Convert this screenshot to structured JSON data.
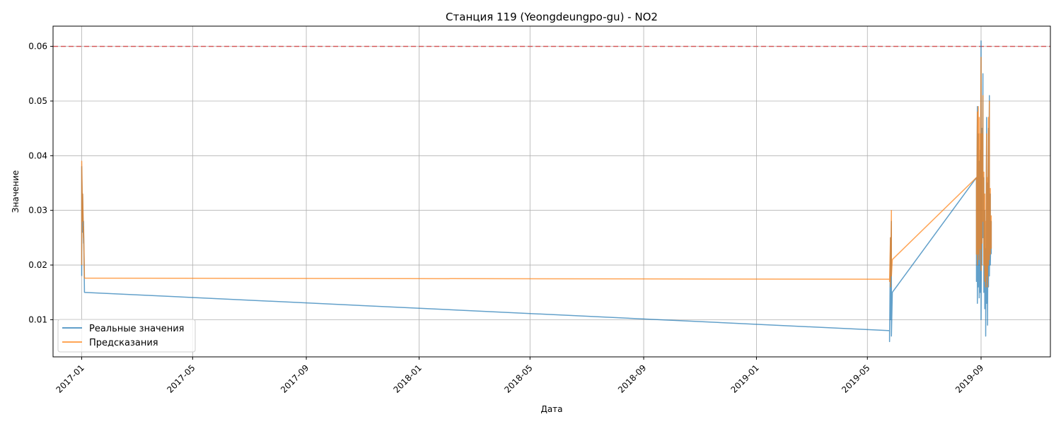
{
  "chart_data": {
    "type": "line",
    "title": "Станция 119 (Yeongdeungpo-gu) - NO2",
    "xlabel": "Дата",
    "ylabel": "Значение",
    "x_type": "date",
    "xlim": [
      "2016-12-01",
      "2019-11-15"
    ],
    "ylim": [
      0.0032,
      0.0637
    ],
    "x_ticks": [
      "2017-01-01",
      "2017-05-01",
      "2017-09-01",
      "2018-01-01",
      "2018-05-01",
      "2018-09-01",
      "2019-01-01",
      "2019-05-01",
      "2019-09-01"
    ],
    "x_tick_labels": [
      "2017-01",
      "2017-05",
      "2017-09",
      "2018-01",
      "2018-05",
      "2018-09",
      "2019-01",
      "2019-05",
      "2019-09"
    ],
    "y_ticks": [
      0.01,
      0.02,
      0.03,
      0.04,
      0.05,
      0.06
    ],
    "y_tick_labels": [
      "0.01",
      "0.02",
      "0.03",
      "0.04",
      "0.05",
      "0.06"
    ],
    "grid": true,
    "legend_position": "lower-left",
    "threshold": {
      "value": 0.06,
      "color": "#d62728",
      "style": "dashed"
    },
    "series": [
      {
        "name": "Реальные значения",
        "color": "#1f77b4",
        "x": [
          "2017-01-01",
          "2017-01-01",
          "2017-01-02",
          "2017-01-02",
          "2017-01-03",
          "2017-01-03",
          "2017-01-04",
          "2019-05-25",
          "2019-05-25",
          "2019-05-26",
          "2019-05-26",
          "2019-05-27",
          "2019-05-27",
          "2019-05-28",
          "2019-08-27",
          "2019-08-27",
          "2019-08-28",
          "2019-08-28",
          "2019-08-29",
          "2019-08-29",
          "2019-08-30",
          "2019-08-30",
          "2019-08-31",
          "2019-08-31",
          "2019-09-01",
          "2019-09-01",
          "2019-09-02",
          "2019-09-02",
          "2019-09-03",
          "2019-09-03",
          "2019-09-04",
          "2019-09-04",
          "2019-09-05",
          "2019-09-05",
          "2019-09-06",
          "2019-09-06",
          "2019-09-07",
          "2019-09-07",
          "2019-09-08",
          "2019-09-08",
          "2019-09-09",
          "2019-09-09",
          "2019-09-10",
          "2019-09-10",
          "2019-09-11",
          "2019-09-11",
          "2019-09-12",
          "2019-09-12"
        ],
        "y": [
          0.018,
          0.038,
          0.026,
          0.033,
          0.024,
          0.028,
          0.015,
          0.008,
          0.006,
          0.025,
          0.01,
          0.028,
          0.007,
          0.015,
          0.036,
          0.017,
          0.049,
          0.013,
          0.044,
          0.016,
          0.039,
          0.014,
          0.041,
          0.015,
          0.061,
          0.01,
          0.045,
          0.02,
          0.055,
          0.025,
          0.036,
          0.015,
          0.03,
          0.012,
          0.023,
          0.007,
          0.047,
          0.013,
          0.035,
          0.009,
          0.045,
          0.016,
          0.051,
          0.018,
          0.033,
          0.02,
          0.028,
          0.022
        ]
      },
      {
        "name": "Предсказания",
        "color": "#ff7f0e",
        "x": [
          "2017-01-01",
          "2017-01-01",
          "2017-01-02",
          "2017-01-02",
          "2017-01-03",
          "2017-01-03",
          "2017-01-04",
          "2019-05-25",
          "2019-05-25",
          "2019-05-26",
          "2019-05-26",
          "2019-05-27",
          "2019-05-27",
          "2019-05-28",
          "2019-08-27",
          "2019-08-27",
          "2019-08-28",
          "2019-08-28",
          "2019-08-29",
          "2019-08-29",
          "2019-08-30",
          "2019-08-30",
          "2019-08-31",
          "2019-08-31",
          "2019-09-01",
          "2019-09-01",
          "2019-09-02",
          "2019-09-02",
          "2019-09-03",
          "2019-09-03",
          "2019-09-04",
          "2019-09-04",
          "2019-09-05",
          "2019-09-05",
          "2019-09-06",
          "2019-09-06",
          "2019-09-07",
          "2019-09-07",
          "2019-09-08",
          "2019-09-08",
          "2019-09-09",
          "2019-09-09",
          "2019-09-10",
          "2019-09-10",
          "2019-09-11",
          "2019-09-11",
          "2019-09-12",
          "2019-09-12"
        ],
        "y": [
          0.02,
          0.039,
          0.028,
          0.033,
          0.025,
          0.027,
          0.0176,
          0.0174,
          0.017,
          0.025,
          0.016,
          0.03,
          0.018,
          0.021,
          0.036,
          0.022,
          0.048,
          0.02,
          0.049,
          0.022,
          0.047,
          0.021,
          0.044,
          0.023,
          0.058,
          0.019,
          0.044,
          0.024,
          0.051,
          0.028,
          0.037,
          0.02,
          0.033,
          0.017,
          0.028,
          0.016,
          0.044,
          0.018,
          0.036,
          0.016,
          0.047,
          0.02,
          0.05,
          0.021,
          0.034,
          0.022,
          0.029,
          0.023
        ]
      }
    ]
  }
}
